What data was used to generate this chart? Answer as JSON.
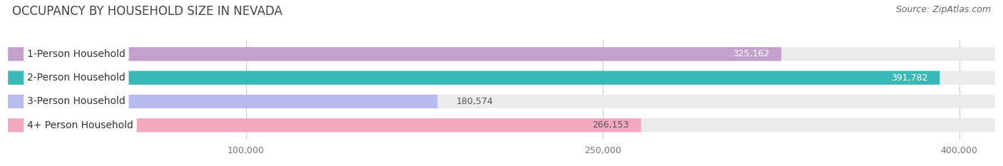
{
  "title": "OCCUPANCY BY HOUSEHOLD SIZE IN NEVADA",
  "source": "Source: ZipAtlas.com",
  "categories": [
    "1-Person Household",
    "2-Person Household",
    "3-Person Household",
    "4+ Person Household"
  ],
  "values": [
    325162,
    391782,
    180574,
    266153
  ],
  "bar_colors": [
    "#c4a0cc",
    "#3ab8b8",
    "#b8bcec",
    "#f4a8c0"
  ],
  "value_inside_color": [
    "#ffffff",
    "#ffffff",
    "#555555",
    "#555555"
  ],
  "x_ticks": [
    100000,
    250000,
    400000
  ],
  "x_tick_labels": [
    "100,000",
    "250,000",
    "400,000"
  ],
  "xlim_max": 415000,
  "background_color": "#ffffff",
  "bar_background_color": "#ebebeb",
  "title_fontsize": 12,
  "source_fontsize": 9,
  "label_fontsize": 10,
  "value_fontsize": 9,
  "bar_height": 0.58,
  "figsize": [
    14.06,
    2.33
  ],
  "dpi": 100
}
